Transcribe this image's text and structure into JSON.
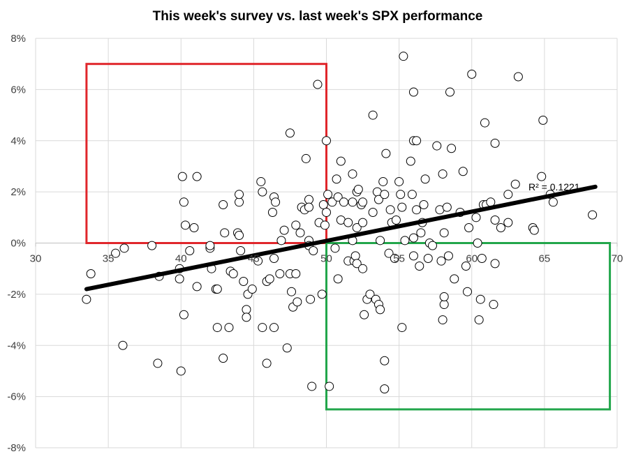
{
  "chart_data": {
    "type": "scatter",
    "title": "This week's survey vs. last week's SPX performance",
    "xlabel": "",
    "ylabel": "",
    "xlim": [
      30,
      70
    ],
    "ylim": [
      -8,
      8
    ],
    "x_ticks": [
      "30",
      "35",
      "40",
      "45",
      "50",
      "55",
      "60",
      "65",
      "70"
    ],
    "y_ticks": [
      "8%",
      "6%",
      "4%",
      "2%",
      "0%",
      "-2%",
      "-4%",
      "-6%",
      "-8%"
    ],
    "grid": true,
    "legend": "none",
    "trendline": {
      "x": [
        33.5,
        68.5
      ],
      "y": [
        -1.8,
        2.2
      ],
      "color": "#000000"
    },
    "r_squared_label": "R² = 0.1221",
    "marker_color": "#000000",
    "highlight_boxes": [
      {
        "x": [
          33.5,
          50
        ],
        "y": [
          0,
          7
        ],
        "color": "#e0262b"
      },
      {
        "x": [
          50,
          69.5
        ],
        "y": [
          -6.5,
          0
        ],
        "color": "#22a64b"
      }
    ],
    "points": [
      [
        33.5,
        -2.2
      ],
      [
        33.8,
        -1.2
      ],
      [
        35.5,
        -0.4
      ],
      [
        36.1,
        -0.2
      ],
      [
        36,
        -4
      ],
      [
        38,
        -0.1
      ],
      [
        38.5,
        -1.3
      ],
      [
        38.4,
        -4.7
      ],
      [
        39.9,
        -1
      ],
      [
        39.9,
        -1.4
      ],
      [
        40,
        -5
      ],
      [
        40.1,
        2.6
      ],
      [
        40.2,
        1.6
      ],
      [
        40.3,
        0.7
      ],
      [
        40.2,
        -2.8
      ],
      [
        40.6,
        -0.3
      ],
      [
        40.9,
        0.6
      ],
      [
        41.1,
        2.6
      ],
      [
        41.1,
        -1.7
      ],
      [
        42,
        -0.2
      ],
      [
        42,
        -0.1
      ],
      [
        42.1,
        -1
      ],
      [
        42.4,
        -1.8
      ],
      [
        42.5,
        -1.8
      ],
      [
        42.5,
        -3.3
      ],
      [
        42.9,
        -4.5
      ],
      [
        42.9,
        1.5
      ],
      [
        43,
        0.4
      ],
      [
        43.3,
        -3.3
      ],
      [
        43.4,
        -1.1
      ],
      [
        43.6,
        -1.2
      ],
      [
        43.9,
        0.4
      ],
      [
        44,
        1.6
      ],
      [
        44,
        0.3
      ],
      [
        44,
        1.9
      ],
      [
        44.1,
        -0.3
      ],
      [
        44.3,
        -1.5
      ],
      [
        44.5,
        -2.6
      ],
      [
        44.5,
        -2.9
      ],
      [
        44.6,
        -2
      ],
      [
        44.9,
        -1.8
      ],
      [
        45.3,
        -0.7
      ],
      [
        45.5,
        2.4
      ],
      [
        45.6,
        2
      ],
      [
        45.6,
        -3.3
      ],
      [
        45.9,
        -4.7
      ],
      [
        45.9,
        -1.5
      ],
      [
        46.1,
        -1.4
      ],
      [
        46.3,
        1.2
      ],
      [
        46.4,
        1.8
      ],
      [
        46.4,
        -0.6
      ],
      [
        46.4,
        -3.3
      ],
      [
        46.5,
        1.6
      ],
      [
        46.8,
        -1.2
      ],
      [
        46.9,
        0.1
      ],
      [
        47.1,
        0.5
      ],
      [
        47.3,
        -4.1
      ],
      [
        47.5,
        -1.2
      ],
      [
        47.5,
        4.3
      ],
      [
        47.6,
        -1.9
      ],
      [
        47.7,
        -2.5
      ],
      [
        47.9,
        0.7
      ],
      [
        47.9,
        -1.2
      ],
      [
        48,
        -2.3
      ],
      [
        48.2,
        0.4
      ],
      [
        48.3,
        1.4
      ],
      [
        48.5,
        1.3
      ],
      [
        48.6,
        3.3
      ],
      [
        48.8,
        0.1
      ],
      [
        48.8,
        1.7
      ],
      [
        48.8,
        1.4
      ],
      [
        48.8,
        -0.1
      ],
      [
        48.9,
        -2.2
      ],
      [
        49,
        -5.6
      ],
      [
        49.1,
        -0.3
      ],
      [
        49.4,
        6.2
      ],
      [
        49.5,
        0.8
      ],
      [
        49.7,
        -2
      ],
      [
        49.8,
        1.5
      ],
      [
        49.9,
        0.7
      ],
      [
        50,
        4
      ],
      [
        50,
        1.2
      ],
      [
        50.1,
        1.9
      ],
      [
        50.2,
        -5.6
      ],
      [
        50.4,
        1.6
      ],
      [
        50.6,
        -0.2
      ],
      [
        50.7,
        2.5
      ],
      [
        50.8,
        1.8
      ],
      [
        50.8,
        -1.4
      ],
      [
        51,
        3.2
      ],
      [
        51,
        0.9
      ],
      [
        51.2,
        1.6
      ],
      [
        51.5,
        -0.7
      ],
      [
        51.5,
        0.8
      ],
      [
        51.8,
        1.6
      ],
      [
        51.8,
        2.7
      ],
      [
        51.8,
        0.1
      ],
      [
        51.9,
        -0.7
      ],
      [
        52,
        -0.5
      ],
      [
        52.1,
        2
      ],
      [
        52.1,
        -0.8
      ],
      [
        52.1,
        0.6
      ],
      [
        52.2,
        2.1
      ],
      [
        52.4,
        1.5
      ],
      [
        52.5,
        0.8
      ],
      [
        52.5,
        1.6
      ],
      [
        52.5,
        -1
      ],
      [
        52.6,
        -2.8
      ],
      [
        52.8,
        -2.2
      ],
      [
        53,
        -2
      ],
      [
        53.2,
        5
      ],
      [
        53.2,
        1.2
      ],
      [
        53.4,
        -2.2
      ],
      [
        53.5,
        2
      ],
      [
        53.6,
        1.7
      ],
      [
        53.6,
        -2.4
      ],
      [
        53.7,
        0.1
      ],
      [
        53.7,
        -2.6
      ],
      [
        53.9,
        2.4
      ],
      [
        54,
        1.9
      ],
      [
        54,
        -4.6
      ],
      [
        54,
        -5.7
      ],
      [
        54.1,
        3.5
      ],
      [
        54.3,
        -0.4
      ],
      [
        54.4,
        1.3
      ],
      [
        54.5,
        0.8
      ],
      [
        54.7,
        -0.6
      ],
      [
        54.8,
        0.9
      ],
      [
        55,
        2.4
      ],
      [
        55.1,
        1.9
      ],
      [
        55.2,
        1.4
      ],
      [
        55.2,
        -3.3
      ],
      [
        55.3,
        7.3
      ],
      [
        55.4,
        0.1
      ],
      [
        55.8,
        3.2
      ],
      [
        55.9,
        1.9
      ],
      [
        56,
        5.9
      ],
      [
        56,
        4
      ],
      [
        56,
        0.2
      ],
      [
        56,
        -0.5
      ],
      [
        56.2,
        4
      ],
      [
        56.2,
        1.3
      ],
      [
        56.4,
        -0.9
      ],
      [
        56.5,
        0.4
      ],
      [
        56.6,
        0.8
      ],
      [
        56.7,
        1.5
      ],
      [
        56.8,
        2.5
      ],
      [
        57,
        -0.6
      ],
      [
        57.1,
        0
      ],
      [
        57.3,
        -0.1
      ],
      [
        57.6,
        3.8
      ],
      [
        57.8,
        1.3
      ],
      [
        57.9,
        -0.7
      ],
      [
        58,
        -3
      ],
      [
        58,
        2.7
      ],
      [
        58.1,
        0.4
      ],
      [
        58.1,
        -2.4
      ],
      [
        58.1,
        -2.1
      ],
      [
        58.3,
        1.4
      ],
      [
        58.4,
        -0.5
      ],
      [
        58.5,
        5.9
      ],
      [
        58.6,
        3.7
      ],
      [
        58.8,
        -1.4
      ],
      [
        59.2,
        1.2
      ],
      [
        59.4,
        2.8
      ],
      [
        59.6,
        -0.9
      ],
      [
        59.7,
        -1.9
      ],
      [
        59.8,
        0.6
      ],
      [
        60,
        6.6
      ],
      [
        60.3,
        1
      ],
      [
        60.4,
        0
      ],
      [
        60.5,
        -3
      ],
      [
        60.6,
        -2.2
      ],
      [
        60.7,
        -0.6
      ],
      [
        60.8,
        1.5
      ],
      [
        60.9,
        4.7
      ],
      [
        61,
        1.5
      ],
      [
        61.3,
        1.6
      ],
      [
        61.5,
        -2.4
      ],
      [
        61.6,
        -0.8
      ],
      [
        61.6,
        0.9
      ],
      [
        61.6,
        3.9
      ],
      [
        62,
        0.6
      ],
      [
        62.5,
        0.8
      ],
      [
        62.5,
        1.9
      ],
      [
        63.2,
        6.5
      ],
      [
        63,
        2.3
      ],
      [
        64.2,
        0.6
      ],
      [
        64.3,
        0.5
      ],
      [
        64.8,
        2.6
      ],
      [
        64.9,
        4.8
      ],
      [
        65.4,
        1.9
      ],
      [
        65.6,
        1.6
      ],
      [
        68.3,
        1.1
      ]
    ]
  }
}
